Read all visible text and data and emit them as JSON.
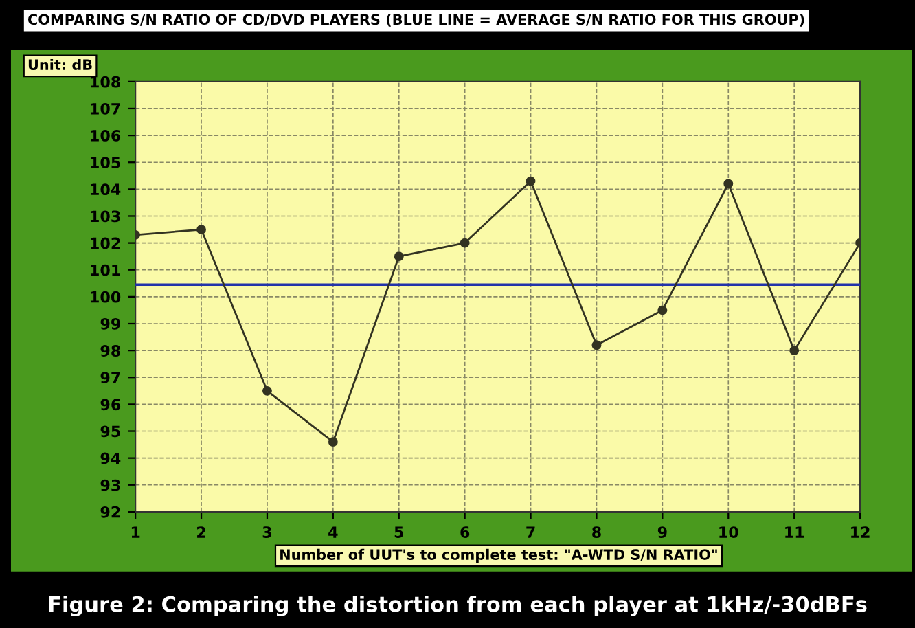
{
  "chart_data": {
    "type": "line",
    "title": "COMPARING S/N RATIO OF CD/DVD PLAYERS (BLUE LINE = AVERAGE S/N RATIO FOR THIS GROUP)",
    "ylabel": "Unit: dB",
    "xlabel": "Number of UUT's to complete test: \"A-WTD S/N RATIO\"",
    "annotations": [
      "Figure 2: Comparing the distortion from each player at 1kHz/-30dBFs"
    ],
    "x": [
      1,
      2,
      3,
      4,
      5,
      6,
      7,
      8,
      9,
      10,
      11,
      12
    ],
    "series": [
      {
        "color": "#333322",
        "values": [
          102.3,
          102.5,
          96.5,
          94.6,
          101.5,
          102.0,
          104.3,
          98.2,
          99.5,
          104.2,
          98.0,
          102.0
        ]
      }
    ],
    "ref_lines": [
      {
        "axis": "y",
        "value": 100.45,
        "color": "#2233aa"
      }
    ],
    "xlim": [
      1,
      12
    ],
    "xticks": [
      1,
      2,
      3,
      4,
      5,
      6,
      7,
      8,
      9,
      10,
      11,
      12
    ],
    "ylim": [
      92,
      108
    ],
    "yticks": [
      92,
      93,
      94,
      95,
      96,
      97,
      98,
      99,
      100,
      101,
      102,
      103,
      104,
      105,
      106,
      107,
      108
    ],
    "grid": true,
    "marker": "circle",
    "line_style": "solid"
  }
}
